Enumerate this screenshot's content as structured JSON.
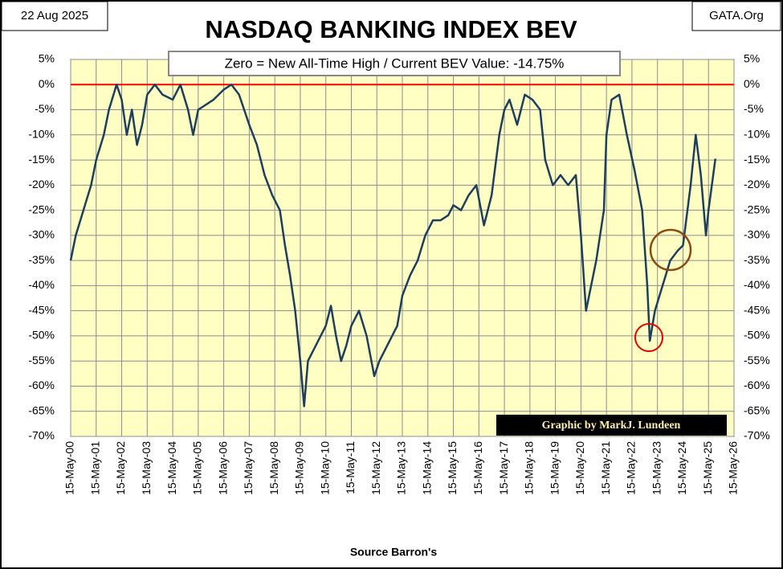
{
  "chart_data": {
    "type": "line",
    "title": "NASDAQ BANKING INDEX BEV",
    "subtitle": "Zero = New All-Time High / Current BEV Value:  -14.75%",
    "date_label": "22 Aug 2025",
    "site_label": "GATA.Org",
    "credit": "Graphic by MarkJ. Lundeen",
    "source": "Source  Barron's",
    "reference_line": {
      "value": 0,
      "color": "#ff0000"
    },
    "grid": true,
    "background": "#ffffc4",
    "xlim": [
      0,
      26
    ],
    "xticks": [
      {
        "value": 0,
        "label": "15-May-00"
      },
      {
        "value": 1,
        "label": "15-May-01"
      },
      {
        "value": 2,
        "label": "15-May-02"
      },
      {
        "value": 3,
        "label": "15-May-03"
      },
      {
        "value": 4,
        "label": "15-May-04"
      },
      {
        "value": 5,
        "label": "15-May-05"
      },
      {
        "value": 6,
        "label": "15-May-06"
      },
      {
        "value": 7,
        "label": "15-May-07"
      },
      {
        "value": 8,
        "label": "15-May-08"
      },
      {
        "value": 9,
        "label": "15-May-09"
      },
      {
        "value": 10,
        "label": "15-May-10"
      },
      {
        "value": 11,
        "label": "15-May-11"
      },
      {
        "value": 12,
        "label": "15-May-12"
      },
      {
        "value": 13,
        "label": "15-May-13"
      },
      {
        "value": 14,
        "label": "15-May-14"
      },
      {
        "value": 15,
        "label": "15-May-15"
      },
      {
        "value": 16,
        "label": "15-May-16"
      },
      {
        "value": 17,
        "label": "15-May-17"
      },
      {
        "value": 18,
        "label": "15-May-18"
      },
      {
        "value": 19,
        "label": "15-May-19"
      },
      {
        "value": 20,
        "label": "15-May-20"
      },
      {
        "value": 21,
        "label": "15-May-21"
      },
      {
        "value": 22,
        "label": "15-May-22"
      },
      {
        "value": 23,
        "label": "15-May-23"
      },
      {
        "value": 24,
        "label": "15-May-24"
      },
      {
        "value": 25,
        "label": "15-May-25"
      },
      {
        "value": 26,
        "label": "15-May-26"
      }
    ],
    "ylim": [
      -70,
      5
    ],
    "yticks": [
      {
        "value": 5,
        "label": "5%"
      },
      {
        "value": 0,
        "label": "0%"
      },
      {
        "value": -5,
        "label": "-5%"
      },
      {
        "value": -10,
        "label": "-10%"
      },
      {
        "value": -15,
        "label": "-15%"
      },
      {
        "value": -20,
        "label": "-20%"
      },
      {
        "value": -25,
        "label": "-25%"
      },
      {
        "value": -30,
        "label": "-30%"
      },
      {
        "value": -35,
        "label": "-35%"
      },
      {
        "value": -40,
        "label": "-40%"
      },
      {
        "value": -45,
        "label": "-45%"
      },
      {
        "value": -50,
        "label": "-50%"
      },
      {
        "value": -55,
        "label": "-55%"
      },
      {
        "value": -60,
        "label": "-60%"
      },
      {
        "value": -65,
        "label": "-65%"
      },
      {
        "value": -70,
        "label": "-70%"
      }
    ],
    "x": [
      0,
      0.2,
      0.5,
      0.8,
      1.0,
      1.3,
      1.5,
      1.8,
      2.0,
      2.2,
      2.4,
      2.6,
      2.8,
      3.0,
      3.3,
      3.6,
      4.0,
      4.3,
      4.6,
      4.8,
      5.0,
      5.3,
      5.6,
      6.0,
      6.3,
      6.6,
      7.0,
      7.3,
      7.6,
      7.9,
      8.2,
      8.4,
      8.6,
      8.8,
      9.0,
      9.15,
      9.3,
      9.6,
      10.0,
      10.2,
      10.4,
      10.6,
      10.8,
      11.0,
      11.3,
      11.6,
      11.9,
      12.1,
      12.4,
      12.8,
      13.0,
      13.3,
      13.6,
      13.9,
      14.2,
      14.5,
      14.8,
      15.0,
      15.3,
      15.6,
      15.9,
      16.2,
      16.5,
      16.8,
      17.0,
      17.2,
      17.5,
      17.8,
      18.1,
      18.4,
      18.6,
      18.9,
      19.2,
      19.5,
      19.8,
      20.0,
      20.2,
      20.4,
      20.6,
      20.9,
      21.0,
      21.2,
      21.5,
      21.8,
      22.1,
      22.4,
      22.6,
      22.7,
      22.9,
      23.2,
      23.5,
      23.8,
      24.0,
      24.3,
      24.5,
      24.7,
      24.9,
      25.0,
      25.27
    ],
    "series": [
      {
        "color": "#1d3f5c",
        "values": [
          -35,
          -30,
          -25,
          -20,
          -15,
          -10,
          -5,
          0,
          -3,
          -10,
          -5,
          -12,
          -8,
          -2,
          0,
          -2,
          -3,
          0,
          -5,
          -10,
          -5,
          -4,
          -3,
          -1,
          0,
          -2,
          -8,
          -12,
          -18,
          -22,
          -25,
          -32,
          -38,
          -45,
          -55,
          -64,
          -55,
          -52,
          -48,
          -44,
          -50,
          -55,
          -52,
          -48,
          -45,
          -50,
          -58,
          -55,
          -52,
          -48,
          -42,
          -38,
          -35,
          -30,
          -27,
          -27,
          -26,
          -24,
          -25,
          -22,
          -20,
          -28,
          -22,
          -10,
          -5,
          -3,
          -8,
          -2,
          -3,
          -5,
          -15,
          -20,
          -18,
          -20,
          -18,
          -30,
          -45,
          -40,
          -35,
          -25,
          -10,
          -3,
          -2,
          -10,
          -17,
          -25,
          -40,
          -51,
          -45,
          -40,
          -35,
          -33,
          -32,
          -20,
          -10,
          -18,
          -30,
          -25,
          -14.75
        ]
      }
    ]
  }
}
